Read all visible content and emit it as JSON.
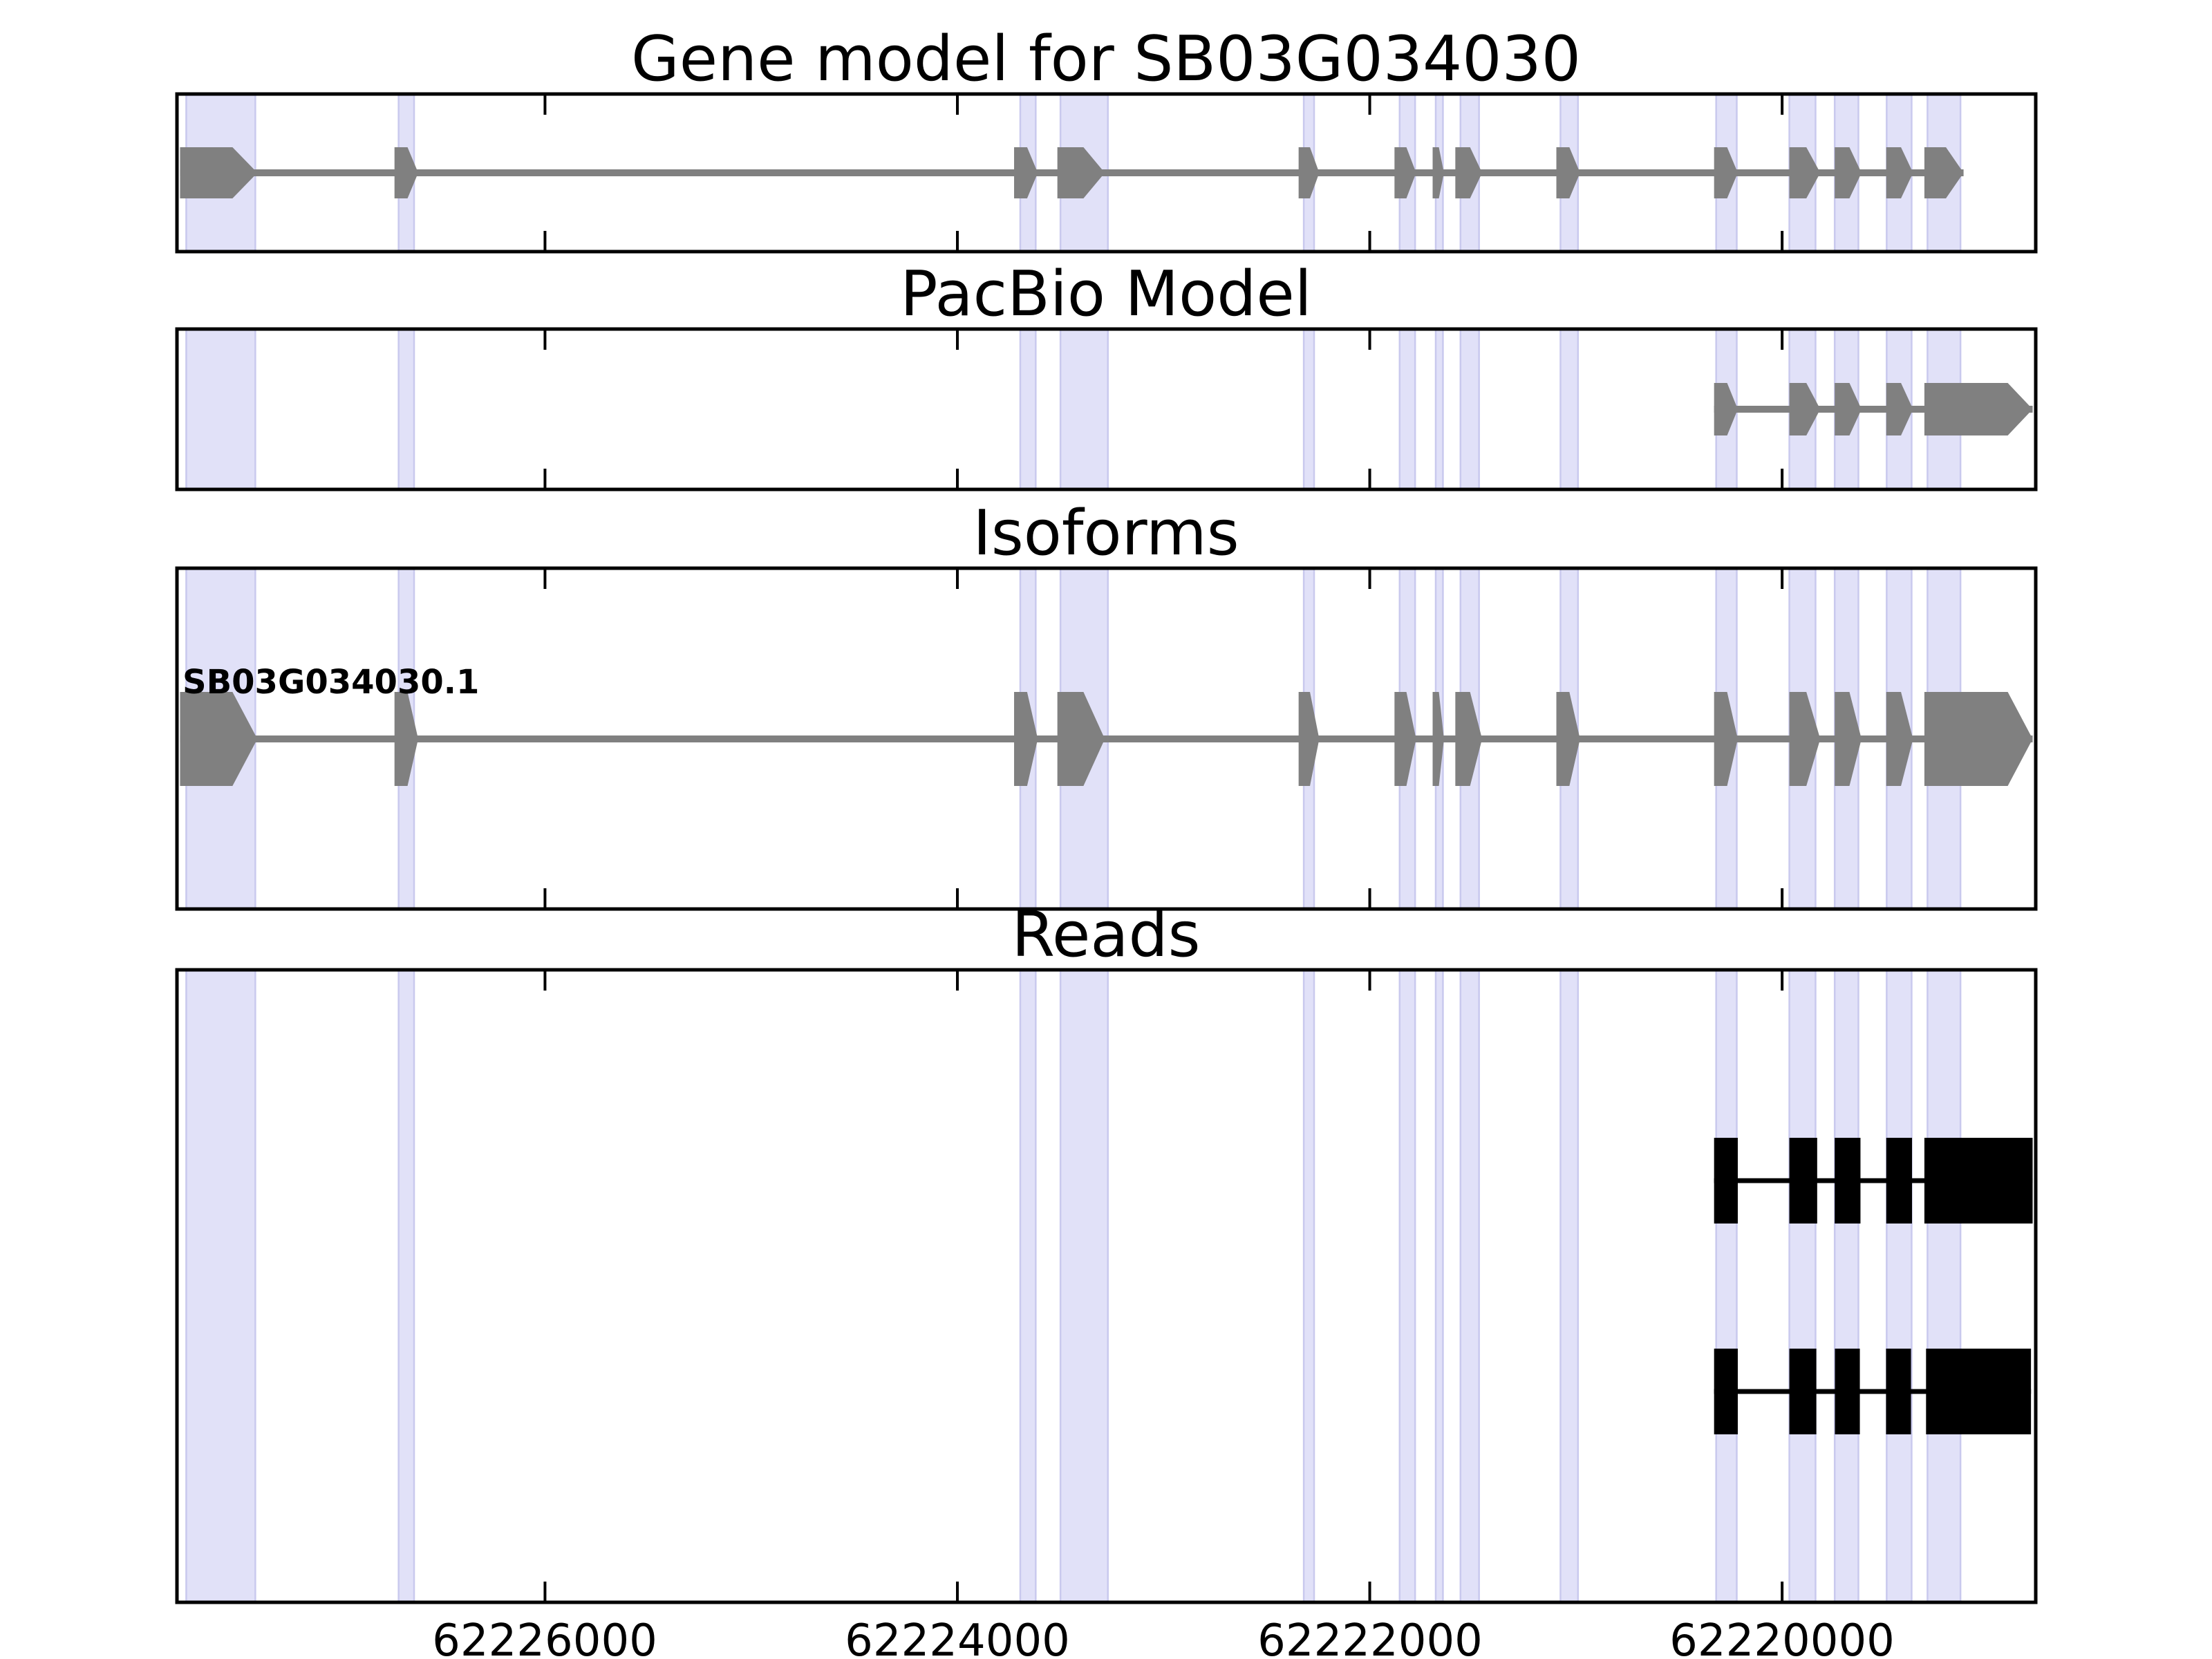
{
  "chart_data": {
    "type": "gene-model-tracks",
    "title": "Gene model for SB03G034030",
    "xlabel": "",
    "ylabel": "",
    "grid": false,
    "legend": "none",
    "x_axis_reversed": true,
    "x_range": [
      62227785,
      62218770
    ],
    "x_ticks": [
      62226000,
      62224000,
      62222000,
      62220000
    ],
    "x_tick_labels": [
      "62226000",
      "62224000",
      "62222000",
      "62220000"
    ],
    "highlight_regions_bp": [
      [
        62227740,
        62227405
      ],
      [
        62226710,
        62226635
      ],
      [
        62223695,
        62223620
      ],
      [
        62223500,
        62223270
      ],
      [
        62222320,
        62222270
      ],
      [
        62221855,
        62221780
      ],
      [
        62221680,
        62221645
      ],
      [
        62221560,
        62221470
      ],
      [
        62221075,
        62220990
      ],
      [
        62220320,
        62220220
      ],
      [
        62219965,
        62219838
      ],
      [
        62219745,
        62219630
      ],
      [
        62219493,
        62219372
      ],
      [
        62219295,
        62219135
      ]
    ],
    "panels": [
      {
        "id": "gene-model",
        "title": "Gene model for SB03G034030",
        "rows": [
          {
            "label": "",
            "style": "arrow",
            "color": "#808080",
            "exons": [
              [
                62227770,
                62227395
              ],
              [
                62226730,
                62226615
              ],
              [
                62223725,
                62223610
              ],
              [
                62223515,
                62223285
              ],
              [
                62222345,
                62222245
              ],
              [
                62221880,
                62221775
              ],
              [
                62221695,
                62221640
              ],
              [
                62221585,
                62221455
              ],
              [
                62221095,
                62220980
              ],
              [
                62220330,
                62220215
              ],
              [
                62219965,
                62219815
              ],
              [
                62219745,
                62219615
              ],
              [
                62219495,
                62219365
              ],
              [
                62219310,
                62219120
              ]
            ]
          }
        ]
      },
      {
        "id": "pacbio-model",
        "title": "PacBio Model",
        "rows": [
          {
            "label": "",
            "style": "arrow",
            "color": "#808080",
            "exons": [
              [
                62220330,
                62220215
              ],
              [
                62219965,
                62219815
              ],
              [
                62219745,
                62219615
              ],
              [
                62219495,
                62219365
              ],
              [
                62219310,
                62218785
              ]
            ]
          }
        ]
      },
      {
        "id": "isoforms",
        "title": "Isoforms",
        "rows": [
          {
            "label": "SB03G034030.1",
            "style": "arrow",
            "color": "#808080",
            "exons": [
              [
                62227770,
                62227395
              ],
              [
                62226730,
                62226615
              ],
              [
                62223725,
                62223610
              ],
              [
                62223515,
                62223285
              ],
              [
                62222345,
                62222245
              ],
              [
                62221880,
                62221775
              ],
              [
                62221695,
                62221640
              ],
              [
                62221585,
                62221455
              ],
              [
                62221095,
                62220980
              ],
              [
                62220330,
                62220215
              ],
              [
                62219965,
                62219815
              ],
              [
                62219745,
                62219615
              ],
              [
                62219495,
                62219365
              ],
              [
                62219310,
                62218785
              ]
            ]
          }
        ]
      },
      {
        "id": "reads",
        "title": "Reads",
        "rows": [
          {
            "label": "",
            "style": "rect",
            "color": "#000000",
            "exons": [
              [
                62220330,
                62220215
              ],
              [
                62219965,
                62219830
              ],
              [
                62219745,
                62219620
              ],
              [
                62219495,
                62219370
              ],
              [
                62219310,
                62218785
              ]
            ]
          },
          {
            "label": "",
            "style": "rect",
            "color": "#000000",
            "exons": [
              [
                62220330,
                62220215
              ],
              [
                62219965,
                62219834
              ],
              [
                62219744,
                62219623
              ],
              [
                62219496,
                62219375
              ],
              [
                62219302,
                62218793
              ]
            ]
          }
        ]
      }
    ]
  },
  "colors": {
    "background": "#ffffff",
    "model_fill": "#808080",
    "read_fill": "#000000",
    "highlight_fill": "#e1e1f8",
    "highlight_edge": "#c9c9ee",
    "panel_border": "#000000",
    "tick_color": "#000000"
  }
}
